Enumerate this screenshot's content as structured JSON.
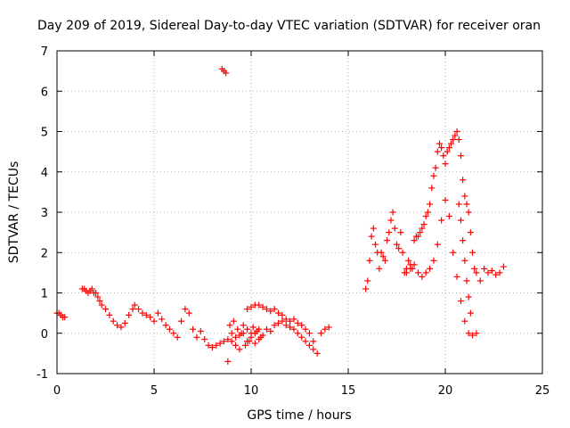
{
  "chart_data": {
    "type": "scatter",
    "title": "Day 209 of 2019, Sidereal Day-to-day VTEC variation (SDTVAR) for receiver oran",
    "xlabel": "GPS time / hours",
    "ylabel": "SDTVAR / TECUs",
    "xlim": [
      0,
      25
    ],
    "ylim": [
      -1,
      7
    ],
    "xticks": [
      0,
      5,
      10,
      15,
      20,
      25
    ],
    "yticks": [
      -1,
      0,
      1,
      2,
      3,
      4,
      5,
      6,
      7
    ],
    "grid": true,
    "marker": "plus",
    "series": [
      {
        "name": "SDTVAR",
        "color": "#ff0000",
        "x": [
          0.0,
          0.1,
          0.2,
          0.3,
          0.4,
          1.3,
          1.4,
          1.5,
          1.6,
          1.7,
          1.8,
          1.9,
          2.0,
          2.1,
          2.2,
          2.3,
          2.5,
          2.7,
          2.9,
          3.1,
          3.3,
          3.5,
          3.7,
          3.9,
          4.0,
          4.2,
          4.4,
          4.6,
          4.8,
          5.0,
          5.2,
          5.4,
          5.6,
          5.8,
          6.0,
          6.2,
          6.4,
          6.6,
          6.8,
          7.0,
          7.2,
          7.4,
          7.6,
          7.8,
          8.0,
          8.2,
          8.4,
          8.6,
          8.8,
          9.0,
          9.2,
          9.4,
          9.6,
          9.8,
          10.0,
          10.2,
          10.4,
          10.6,
          10.8,
          11.0,
          11.2,
          11.4,
          11.6,
          11.8,
          12.0,
          12.2,
          12.4,
          12.6,
          12.8,
          13.0,
          13.2,
          13.4,
          13.6,
          13.8,
          14.0,
          8.5,
          8.6,
          8.7,
          8.8,
          8.9,
          9.0,
          9.1,
          9.2,
          9.3,
          9.4,
          9.5,
          9.6,
          9.7,
          9.8,
          9.9,
          10.0,
          10.1,
          10.2,
          10.3,
          10.4,
          10.5,
          9.8,
          10.0,
          10.2,
          10.4,
          10.6,
          10.8,
          11.0,
          11.2,
          11.4,
          11.6,
          11.8,
          12.0,
          12.2,
          12.4,
          12.6,
          12.8,
          13.0,
          13.2,
          15.9,
          16.0,
          16.1,
          16.2,
          16.3,
          16.4,
          16.5,
          16.6,
          16.7,
          16.8,
          16.9,
          17.0,
          17.1,
          17.2,
          17.3,
          17.4,
          17.5,
          17.6,
          17.7,
          17.8,
          17.9,
          18.0,
          18.1,
          18.2,
          18.3,
          18.4,
          18.5,
          18.6,
          18.7,
          18.8,
          18.9,
          19.0,
          19.1,
          19.2,
          19.3,
          19.4,
          19.5,
          19.6,
          19.7,
          19.8,
          19.9,
          20.0,
          20.1,
          20.2,
          20.3,
          20.4,
          20.5,
          20.6,
          20.7,
          20.8,
          20.9,
          21.0,
          21.1,
          21.2,
          21.3,
          21.4,
          21.5,
          21.6,
          18.0,
          18.2,
          18.4,
          18.6,
          18.8,
          19.0,
          19.2,
          19.4,
          19.6,
          19.8,
          20.0,
          20.2,
          20.4,
          20.6,
          20.8,
          21.0,
          21.2,
          21.4,
          21.6,
          20.7,
          20.8,
          20.9,
          21.0,
          21.1,
          21.2,
          21.3,
          21.8,
          22.0,
          22.2,
          22.4,
          22.6,
          22.8,
          23.0
        ],
        "y": [
          0.5,
          0.5,
          0.45,
          0.4,
          0.4,
          1.1,
          1.1,
          1.05,
          1.0,
          1.05,
          1.1,
          1.0,
          1.0,
          0.9,
          0.8,
          0.7,
          0.6,
          0.45,
          0.3,
          0.2,
          0.15,
          0.25,
          0.45,
          0.6,
          0.7,
          0.6,
          0.5,
          0.45,
          0.4,
          0.3,
          0.5,
          0.35,
          0.2,
          0.1,
          0.0,
          -0.1,
          0.3,
          0.6,
          0.5,
          0.1,
          -0.1,
          0.05,
          -0.15,
          -0.3,
          -0.35,
          -0.3,
          -0.25,
          -0.2,
          -0.15,
          0.0,
          -0.1,
          -0.05,
          0.0,
          -0.2,
          -0.1,
          0.0,
          -0.15,
          -0.05,
          0.1,
          0.05,
          0.2,
          0.25,
          0.3,
          0.2,
          0.15,
          0.1,
          0.0,
          -0.1,
          -0.2,
          -0.3,
          -0.4,
          -0.5,
          0.0,
          0.1,
          0.15,
          6.55,
          6.5,
          6.45,
          -0.7,
          0.2,
          -0.2,
          0.3,
          -0.3,
          0.1,
          -0.4,
          0.0,
          0.2,
          -0.3,
          0.1,
          -0.2,
          0.0,
          0.15,
          -0.25,
          0.05,
          0.1,
          -0.1,
          0.6,
          0.65,
          0.7,
          0.7,
          0.65,
          0.6,
          0.55,
          0.6,
          0.5,
          0.45,
          0.35,
          0.3,
          0.35,
          0.25,
          0.2,
          0.1,
          0.0,
          -0.2,
          1.1,
          1.3,
          1.8,
          2.4,
          2.6,
          2.2,
          2.0,
          1.6,
          2.0,
          1.9,
          1.8,
          2.3,
          2.5,
          2.8,
          3.0,
          2.6,
          2.2,
          2.1,
          2.5,
          2.0,
          1.5,
          1.6,
          1.8,
          1.7,
          1.6,
          2.3,
          2.4,
          2.4,
          2.5,
          2.6,
          2.7,
          2.9,
          3.0,
          3.2,
          3.6,
          3.9,
          4.1,
          4.5,
          4.7,
          4.6,
          4.4,
          4.2,
          4.5,
          4.6,
          4.7,
          4.8,
          4.9,
          5.0,
          4.8,
          4.4,
          3.8,
          3.4,
          3.2,
          3.0,
          2.5,
          2.0,
          1.6,
          1.5,
          1.5,
          1.6,
          1.7,
          1.5,
          1.4,
          1.5,
          1.6,
          1.8,
          2.2,
          2.8,
          3.3,
          2.9,
          2.0,
          1.4,
          0.8,
          0.3,
          0.0,
          -0.05,
          0.0,
          3.2,
          2.8,
          2.3,
          1.8,
          1.3,
          0.9,
          0.5,
          1.3,
          1.6,
          1.5,
          1.55,
          1.45,
          1.5,
          1.65
        ]
      }
    ]
  }
}
